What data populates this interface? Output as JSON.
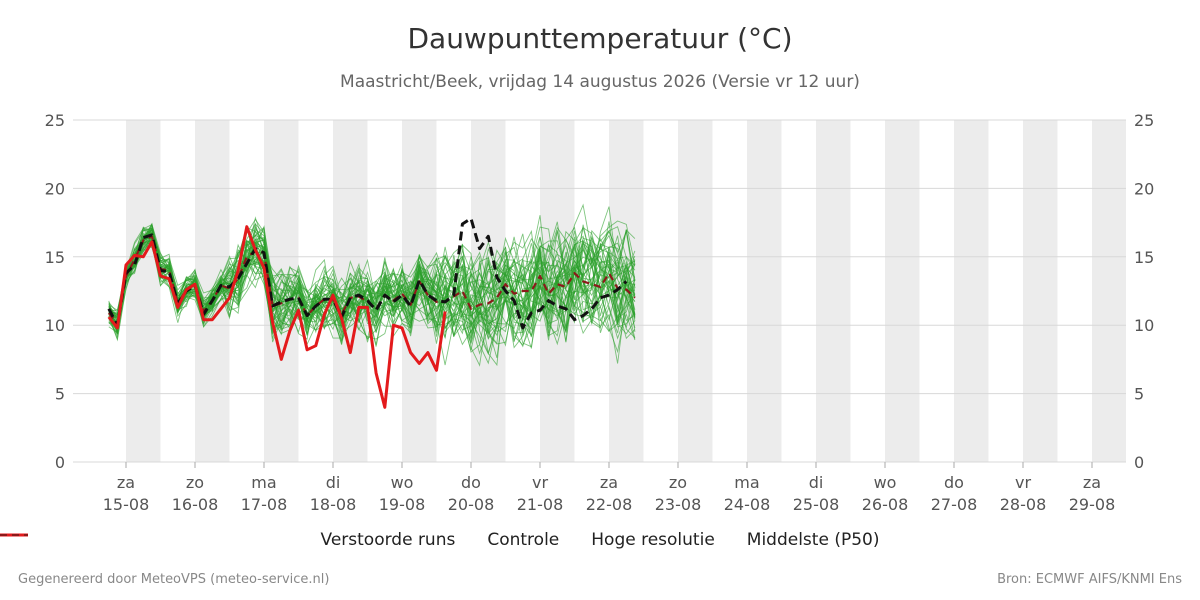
{
  "chart_data": {
    "type": "line",
    "title": "Dauwpunttemperatuur (°C)",
    "subtitle": "Maastricht/Beek, vrijdag 14 augustus 2026 (Versie vr 12 uur)",
    "ylim": [
      0,
      25
    ],
    "yticks": [
      0,
      5,
      10,
      15,
      20,
      25
    ],
    "y_axis_sides": "left and right",
    "grid": true,
    "legend_position": "bottom",
    "x_days": [
      {
        "day": "za",
        "date": "15-08"
      },
      {
        "day": "zo",
        "date": "16-08"
      },
      {
        "day": "ma",
        "date": "17-08"
      },
      {
        "day": "di",
        "date": "18-08"
      },
      {
        "day": "wo",
        "date": "19-08"
      },
      {
        "day": "do",
        "date": "20-08"
      },
      {
        "day": "vr",
        "date": "21-08"
      },
      {
        "day": "za",
        "date": "22-08"
      },
      {
        "day": "zo",
        "date": "23-08"
      },
      {
        "day": "ma",
        "date": "24-08"
      },
      {
        "day": "di",
        "date": "25-08"
      },
      {
        "day": "wo",
        "date": "26-08"
      },
      {
        "day": "do",
        "date": "27-08"
      },
      {
        "day": "vr",
        "date": "28-08"
      },
      {
        "day": "za",
        "date": "29-08"
      }
    ],
    "x_start_day_offset": -0.25,
    "x_end_day_offset": 14.5,
    "shaded_day_offsets": [
      [
        0,
        0.5
      ],
      [
        1,
        1.5
      ],
      [
        2,
        2.5
      ],
      [
        3,
        3.5
      ],
      [
        4,
        4.5
      ],
      [
        5,
        5.5
      ],
      [
        6,
        6.5
      ],
      [
        7,
        7.5
      ],
      [
        8,
        8.5
      ],
      [
        9,
        9.5
      ],
      [
        10,
        10.5
      ],
      [
        11,
        11.5
      ],
      [
        12,
        12.5
      ],
      [
        13,
        13.5
      ],
      [
        14,
        14.5
      ]
    ],
    "series": [
      {
        "name": "Hoge resolutie",
        "color": "#e31a1c",
        "style": "solid",
        "x_days": [
          -0.25,
          -0.125,
          0,
          0.125,
          0.25,
          0.375,
          0.5,
          0.625,
          0.75,
          0.875,
          1,
          1.125,
          1.25,
          1.375,
          1.5,
          1.625,
          1.75,
          1.875,
          2,
          2.125,
          2.25,
          2.375,
          2.5,
          2.625,
          2.75,
          2.875,
          3,
          3.125,
          3.25,
          3.375,
          3.5,
          3.625,
          3.75,
          3.875,
          4,
          4.125,
          4.25,
          4.375,
          4.5,
          4.625,
          4.75,
          4.875,
          5,
          5.125,
          5.25,
          5.375,
          5.5,
          5.625,
          5.75,
          5.875,
          6,
          6.125,
          6.25,
          6.375,
          6.5,
          6.625,
          6.75,
          6.875,
          7,
          7.125,
          7.25,
          7.375,
          7.5
        ],
        "values": [
          10.6,
          9.8,
          14.4,
          15.1,
          15.0,
          16.1,
          13.6,
          13.4,
          11.3,
          12.6,
          13.0,
          10.4,
          10.4,
          11.2,
          12.0,
          14.0,
          17.2,
          15.5,
          14.2,
          10.2,
          7.5,
          9.6,
          11.1,
          8.2,
          8.5,
          10.8,
          12.2,
          10.5,
          8.0,
          11.3,
          11.3,
          6.5,
          4.0,
          10.0,
          9.8,
          8.0,
          7.2,
          8.0,
          6.7,
          11.0,
          null,
          null,
          null,
          null,
          null,
          null,
          null,
          null,
          null,
          null,
          null,
          null,
          null,
          null,
          null,
          null,
          null,
          null,
          null,
          null,
          null,
          null,
          null
        ]
      },
      {
        "name": "Controle",
        "color": "#111111",
        "style": "dashed",
        "x_days": [
          -0.25,
          -0.125,
          0,
          0.125,
          0.25,
          0.375,
          0.5,
          0.625,
          0.75,
          0.875,
          1,
          1.125,
          1.25,
          1.375,
          1.5,
          1.625,
          1.75,
          1.875,
          2,
          2.125,
          2.25,
          2.375,
          2.5,
          2.625,
          2.75,
          2.875,
          3,
          3.125,
          3.25,
          3.375,
          3.5,
          3.625,
          3.75,
          3.875,
          4,
          4.125,
          4.25,
          4.375,
          4.5,
          4.625,
          4.75,
          4.875,
          5,
          5.125,
          5.25,
          5.375,
          5.5,
          5.625,
          5.75,
          5.875,
          6,
          6.125,
          6.25,
          6.375,
          6.5,
          6.625,
          6.75,
          6.875,
          7,
          7.125,
          7.25,
          7.375,
          7.5
        ],
        "values": [
          11.2,
          10.0,
          13.8,
          14.4,
          16.4,
          16.6,
          14.0,
          13.9,
          11.6,
          12.5,
          12.9,
          10.8,
          11.8,
          12.9,
          12.8,
          13.4,
          14.5,
          15.6,
          15.3,
          11.4,
          11.7,
          11.9,
          12.0,
          10.7,
          11.4,
          11.9,
          11.9,
          10.6,
          12.0,
          12.2,
          11.8,
          11.1,
          12.2,
          11.7,
          12.2,
          11.4,
          13.3,
          12.2,
          11.8,
          11.7,
          12.2,
          17.4,
          17.8,
          15.6,
          16.5,
          13.5,
          12.5,
          11.8,
          9.8,
          10.9,
          11.1,
          11.8,
          11.4,
          11.2,
          10.4,
          10.7,
          11.2,
          12.0,
          12.2,
          12.6,
          13.2,
          null,
          null
        ]
      },
      {
        "name": "Middelste (P50)",
        "color": "#8b1a1a",
        "style": "dashed",
        "x_days": [
          -0.25,
          -0.125,
          0,
          0.125,
          0.25,
          0.375,
          0.5,
          0.625,
          0.75,
          0.875,
          1,
          1.125,
          1.25,
          1.375,
          1.5,
          1.625,
          1.75,
          1.875,
          2,
          2.125,
          2.25,
          2.375,
          2.5,
          2.625,
          2.75,
          2.875,
          3,
          3.125,
          3.25,
          3.375,
          3.5,
          3.625,
          3.75,
          3.875,
          4,
          4.125,
          4.25,
          4.375,
          4.5,
          4.625,
          4.75,
          4.875,
          5,
          5.125,
          5.25,
          5.375,
          5.5,
          5.625,
          5.75,
          5.875,
          6,
          6.125,
          6.25,
          6.375,
          6.5,
          6.625,
          6.75,
          6.875,
          7,
          7.125,
          7.25,
          7.375,
          7.5
        ],
        "values": [
          10.9,
          10.1,
          13.6,
          14.8,
          16.2,
          16.5,
          14.1,
          14.0,
          11.6,
          12.6,
          13.0,
          11.0,
          11.8,
          12.9,
          12.7,
          13.4,
          15.0,
          15.4,
          15.3,
          11.4,
          11.6,
          11.9,
          12.0,
          10.7,
          11.4,
          11.9,
          11.9,
          10.8,
          12.0,
          12.1,
          11.7,
          11.2,
          12.2,
          11.8,
          12.3,
          11.5,
          13.2,
          12.2,
          11.7,
          11.7,
          12.1,
          12.5,
          11.2,
          11.5,
          11.6,
          12.0,
          13.0,
          12.3,
          12.5,
          12.5,
          13.6,
          12.3,
          13.0,
          12.8,
          13.8,
          13.2,
          13.0,
          12.8,
          13.8,
          12.7,
          12.6,
          12.0,
          null
        ]
      }
    ],
    "ensemble": {
      "name": "Verstoorde runs",
      "color": "#2ca02c",
      "members": 50
    }
  },
  "legend": [
    {
      "label": "Verstoorde runs",
      "color": "#2ca02c",
      "style": "thin"
    },
    {
      "label": "Controle",
      "color": "#111111",
      "style": "dashed"
    },
    {
      "label": "Hoge resolutie",
      "color": "#e31a1c",
      "style": "solid"
    },
    {
      "label": "Middelste (P50)",
      "color": "#8b1a1a",
      "style": "dashed"
    }
  ],
  "footer": {
    "left": "Gegenereerd door MeteoVPS (meteo-service.nl)",
    "right": "Bron: ECMWF AIFS/KNMI Ens"
  }
}
